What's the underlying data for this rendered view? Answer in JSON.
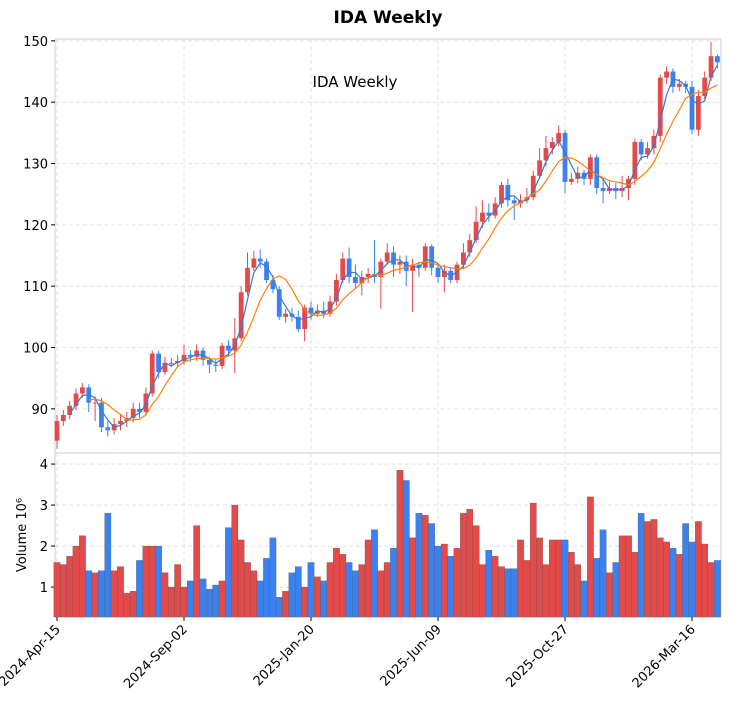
{
  "chart_data": [
    {
      "type": "candlestick",
      "title": "IDA  Weekly",
      "annotation": "IDA  Weekly",
      "categories": [
        "2024-Apr-15",
        null,
        null,
        null,
        null,
        null,
        null,
        null,
        null,
        null,
        null,
        null,
        null,
        null,
        null,
        null,
        null,
        null,
        null,
        null,
        "2024-Sep-02",
        null,
        null,
        null,
        null,
        null,
        null,
        null,
        null,
        null,
        null,
        null,
        null,
        null,
        null,
        null,
        null,
        null,
        null,
        null,
        "2025-Jan-20",
        null,
        null,
        null,
        null,
        null,
        null,
        null,
        null,
        null,
        null,
        null,
        null,
        null,
        null,
        null,
        null,
        null,
        null,
        null,
        "2025-Jun-09",
        null,
        null,
        null,
        null,
        null,
        null,
        null,
        null,
        null,
        null,
        null,
        null,
        null,
        null,
        null,
        null,
        null,
        null,
        null,
        "2025-Oct-27",
        null,
        null,
        null,
        null,
        null,
        null,
        null,
        null,
        null,
        null,
        null,
        null,
        null,
        null,
        null,
        null,
        null,
        null,
        null,
        "2026-Mar-16",
        null,
        null,
        null,
        null
      ],
      "opens": [
        84.8,
        88,
        89,
        90.5,
        92.5,
        93.5,
        91,
        91,
        87,
        86.5,
        87.5,
        88,
        88.5,
        90,
        89.5,
        92.5,
        99,
        96,
        97.5,
        97.5,
        97.8,
        98.8,
        98.5,
        99.5,
        98,
        97.2,
        97,
        100.3,
        99.5,
        101.5,
        109,
        113,
        114.5,
        114,
        111,
        109.5,
        105,
        105.5,
        105,
        103,
        106.5,
        105.5,
        106,
        105.5,
        107.5,
        111,
        114.5,
        111.5,
        110.5,
        111.5,
        112,
        111.5,
        114,
        115.5,
        113.5,
        114,
        112.5,
        113.5,
        113,
        116.5,
        113,
        111.5,
        112.5,
        111,
        113.5,
        115.5,
        117.5,
        120.5,
        122,
        121.5,
        123.5,
        126.5,
        124,
        123.5,
        124,
        124.5,
        128,
        130.5,
        132.5,
        133.5,
        135,
        127,
        127.5,
        128.5,
        127.5,
        131,
        126,
        125.5,
        126,
        125.5,
        126,
        127.5,
        133.5,
        131.5,
        132.5,
        134.5,
        144,
        145,
        142.5,
        143,
        142.5,
        135.5,
        141,
        144,
        147.5
      ],
      "highs": [
        89,
        89.8,
        91.3,
        93.3,
        94.2,
        94,
        92,
        91.8,
        88,
        88.5,
        89,
        89.5,
        91,
        91,
        93.5,
        99.5,
        99.5,
        98.5,
        98.3,
        98.8,
        100.5,
        99.6,
        100.5,
        100,
        98.5,
        98,
        100.8,
        101.2,
        104.8,
        110,
        115.5,
        115.8,
        116,
        114.5,
        111.8,
        110,
        106.3,
        106.5,
        106,
        107,
        107.5,
        107,
        107.5,
        108.5,
        112,
        115.5,
        116.3,
        113.5,
        112.5,
        113,
        117.5,
        114.5,
        117,
        116.5,
        115,
        115,
        114.5,
        114,
        117,
        116.8,
        113.5,
        113.5,
        113,
        114,
        117,
        118.5,
        123,
        124,
        123.5,
        124.5,
        127,
        127.5,
        124.8,
        125,
        126,
        128.8,
        132.5,
        134.5,
        134.3,
        136.2,
        135.5,
        128.5,
        129.5,
        129,
        131.5,
        131.5,
        127.5,
        127,
        126.8,
        128,
        128,
        134,
        134,
        133.5,
        135.5,
        144.5,
        145.8,
        145.5,
        143.8,
        143.5,
        143.5,
        142,
        145,
        149.8,
        147.8
      ],
      "lows": [
        83.5,
        87.2,
        88.3,
        89.8,
        91.8,
        89.5,
        88,
        86.2,
        85.5,
        85.8,
        86.5,
        87,
        87.8,
        88.5,
        89,
        92,
        95,
        95.5,
        96.8,
        96.8,
        97.2,
        97.6,
        97.8,
        97,
        95.8,
        96,
        96.5,
        98.5,
        95.8,
        101,
        108.5,
        112.5,
        113,
        110.5,
        108.8,
        104.5,
        104,
        104.2,
        102.5,
        101,
        104.5,
        105,
        104.8,
        105,
        106.8,
        110.5,
        110.5,
        109.5,
        108.5,
        110.5,
        110.5,
        106.3,
        113.5,
        111.5,
        112,
        110,
        105.8,
        111.5,
        112.5,
        111.8,
        110.5,
        109,
        110.5,
        110.5,
        112.8,
        114.8,
        117,
        119.5,
        120.5,
        121,
        122.8,
        123,
        120.8,
        122.8,
        123.5,
        124,
        127.5,
        129.5,
        131.5,
        132.8,
        125.2,
        126.5,
        126.8,
        126.5,
        126.5,
        125,
        123.5,
        125,
        124.2,
        124.5,
        124,
        126.5,
        130.5,
        130.8,
        131.5,
        133.5,
        143,
        141.5,
        141.8,
        141.5,
        134.8,
        134.5,
        140.5,
        143.5,
        145.5
      ],
      "closes": [
        88,
        89,
        90.5,
        92.5,
        93.5,
        91,
        91,
        87,
        86.5,
        87.5,
        88,
        88.5,
        90,
        89.5,
        92.5,
        99,
        96,
        97.5,
        97.5,
        97.8,
        98.8,
        98.5,
        99.5,
        98,
        97.2,
        97,
        100.3,
        99.5,
        101.5,
        109,
        113,
        114.5,
        114,
        111,
        109.5,
        105,
        105.5,
        105,
        103,
        106.5,
        105.5,
        106,
        105.5,
        107.5,
        111,
        114.5,
        111.5,
        110.5,
        111.5,
        112,
        111.5,
        114,
        115.5,
        113.5,
        114,
        112.5,
        113.5,
        113,
        116.5,
        113,
        111.5,
        112.5,
        111,
        113.5,
        115.5,
        117.5,
        120.5,
        122,
        121.5,
        123.5,
        126.5,
        124,
        123.5,
        124,
        124.5,
        128,
        130.5,
        132.5,
        133.5,
        135,
        127,
        127.5,
        128.5,
        127.5,
        131,
        126,
        125.5,
        126,
        125.5,
        126,
        127.5,
        133.5,
        131.5,
        132.5,
        134.5,
        144,
        145,
        142.5,
        143,
        142.5,
        135.5,
        141,
        144,
        147.5,
        146.5
      ],
      "up_color": "#e34a4a",
      "down_color": "#3b82f0",
      "moving_averages": [
        {
          "color": "#3a78d0",
          "values": [
            null,
            null,
            89.2,
            90.7,
            92.2,
            92.3,
            91.8,
            89.7,
            88.2,
            87,
            87.3,
            88,
            88.8,
            89.3,
            90.7,
            93.7,
            95.8,
            97.5,
            97,
            97.6,
            98,
            98.4,
            98.9,
            98.7,
            98.2,
            97.4,
            98.2,
            98.9,
            100.4,
            103.3,
            107.8,
            112.2,
            113.8,
            113.2,
            111.5,
            108.5,
            106.7,
            105.2,
            104.5,
            104.8,
            105,
            106,
            105.7,
            106.3,
            108,
            111,
            112.3,
            112.2,
            111.2,
            111.3,
            111.7,
            112.5,
            113.7,
            114.3,
            114.3,
            113.3,
            113.3,
            113,
            114.3,
            114.2,
            113.7,
            112.3,
            111.7,
            112.3,
            113.3,
            115.5,
            117.8,
            120,
            121.3,
            122.3,
            123.8,
            124.7,
            124.7,
            123.8,
            124,
            125.5,
            127.7,
            130.3,
            132.2,
            133.7,
            131.8,
            129.8,
            127.7,
            127.8,
            129,
            128.2,
            127.5,
            125.8,
            125.7,
            125.8,
            126.3,
            129,
            131,
            131.2,
            132.8,
            137,
            141.2,
            143.8,
            143.5,
            142.7,
            140.3,
            139.7,
            140.2,
            144.2,
            146
          ]
        },
        {
          "color": "#ff7f0e",
          "values": [
            null,
            null,
            null,
            null,
            null,
            91.4,
            91.6,
            91.3,
            90.7,
            89.8,
            89.1,
            88.2,
            88.2,
            88.3,
            89,
            90.7,
            92,
            93.8,
            95.4,
            96.9,
            97.7,
            98,
            98.2,
            98.3,
            98.2,
            98.1,
            98.3,
            98.6,
            99.1,
            100.4,
            102.5,
            105,
            107.7,
            109.6,
            111.2,
            111.7,
            111.1,
            109.5,
            107.6,
            106.2,
            105.4,
            105.2,
            105.3,
            105.6,
            106.4,
            107.8,
            108.8,
            109.6,
            110.6,
            111.4,
            111.9,
            111.7,
            112.1,
            112.6,
            112.8,
            113.1,
            113.4,
            113.8,
            114,
            113.8,
            113.4,
            113.2,
            113,
            112.8,
            112.9,
            113.4,
            114.6,
            116.2,
            117.7,
            119.5,
            121.1,
            122.3,
            123.1,
            123.6,
            124.4,
            125,
            125.7,
            127.1,
            128.8,
            130.3,
            131,
            130.9,
            130.4,
            129.6,
            128.8,
            128.2,
            127.7,
            127.2,
            127,
            126.8,
            126.5,
            127.1,
            127.9,
            128.8,
            130.2,
            132.4,
            134.8,
            136.9,
            138.7,
            140.6,
            141.3,
            141.6,
            141.6,
            142.3,
            142.8
          ]
        }
      ],
      "ylim": [
        82.8,
        150.3
      ],
      "yticks": [
        90,
        100,
        110,
        120,
        130,
        140,
        150
      ],
      "grid": true
    },
    {
      "type": "bar",
      "ylabel": "Volume  10⁶",
      "values": [
        1.6,
        1.55,
        1.75,
        2.0,
        2.25,
        1.4,
        1.35,
        1.4,
        2.8,
        1.4,
        1.5,
        0.85,
        0.9,
        1.65,
        2.0,
        2.0,
        2.0,
        1.35,
        1.0,
        1.55,
        1.0,
        1.15,
        2.5,
        1.2,
        0.95,
        1.05,
        1.15,
        2.45,
        3.0,
        2.15,
        1.6,
        1.4,
        1.15,
        1.7,
        2.2,
        0.75,
        0.9,
        1.35,
        1.5,
        1.0,
        1.6,
        1.25,
        1.15,
        1.6,
        1.95,
        1.8,
        1.6,
        1.4,
        1.55,
        2.15,
        2.4,
        1.4,
        1.6,
        1.95,
        3.85,
        3.6,
        2.2,
        2.8,
        2.75,
        2.55,
        2.0,
        2.05,
        1.75,
        1.95,
        2.8,
        2.9,
        2.5,
        1.55,
        1.9,
        1.75,
        1.5,
        1.45,
        1.45,
        2.15,
        1.65,
        3.05,
        2.2,
        1.55,
        2.15,
        2.15,
        2.15,
        1.85,
        1.55,
        1.15,
        3.2,
        1.7,
        2.4,
        1.35,
        1.6,
        2.25,
        2.25,
        1.85,
        2.8,
        2.6,
        2.65,
        2.2,
        2.1,
        1.95,
        1.8,
        2.55,
        2.1,
        2.6,
        2.05,
        1.6,
        1.65
      ],
      "ylim": [
        0.27,
        4.27
      ],
      "yticks": [
        1,
        2,
        3,
        4
      ],
      "grid": true
    }
  ]
}
